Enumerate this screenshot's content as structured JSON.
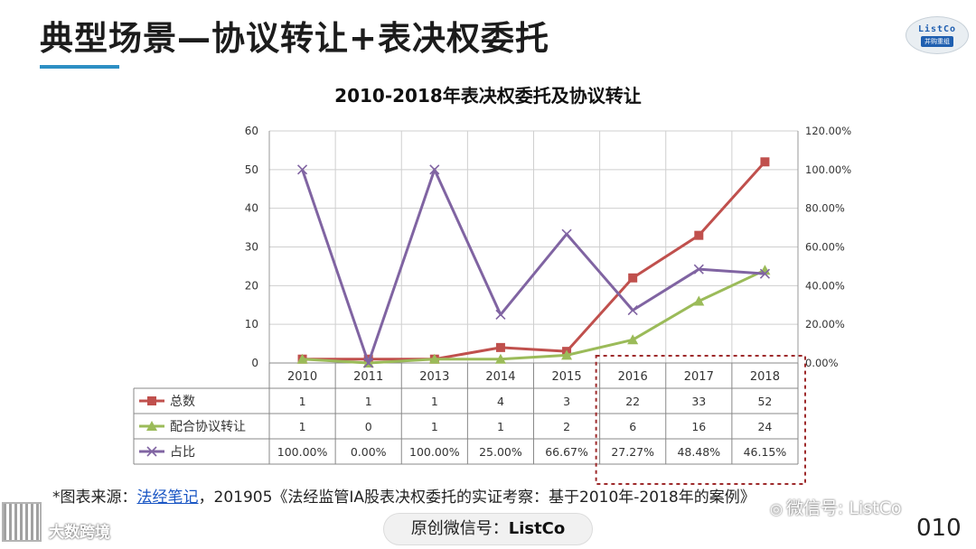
{
  "slide": {
    "title": "典型场景—协议转让+表决权委托",
    "logo_top": "ListCo",
    "logo_bottom": "并购重组"
  },
  "chart_data": {
    "type": "line",
    "title": "2010-2018年表决权委托及协议转让",
    "categories": [
      "2010",
      "2011",
      "2013",
      "2014",
      "2015",
      "2016",
      "2017",
      "2018"
    ],
    "y_left": {
      "ticks": [
        "60",
        "50",
        "40",
        "30",
        "20",
        "10",
        "0"
      ],
      "ylim": [
        0,
        60
      ]
    },
    "y_right": {
      "ticks": [
        "120.00%",
        "100.00%",
        "80.00%",
        "60.00%",
        "40.00%",
        "20.00%",
        "0.00%"
      ],
      "ylim": [
        0,
        1.2
      ]
    },
    "grid": true,
    "legend": "data-table",
    "highlight": {
      "categories": [
        "2016",
        "2017",
        "2018"
      ],
      "style": "dashed-box",
      "color": "#9e2a2b"
    },
    "series": [
      {
        "name": "总数",
        "axis": "left",
        "color": "#c0504d",
        "marker": "square",
        "values": [
          1,
          1,
          1,
          4,
          3,
          22,
          33,
          52
        ],
        "labels": [
          "1",
          "1",
          "1",
          "4",
          "3",
          "22",
          "33",
          "52"
        ]
      },
      {
        "name": "配合协议转让",
        "axis": "left",
        "color": "#9bbb59",
        "marker": "triangle",
        "values": [
          1,
          0,
          1,
          1,
          2,
          6,
          16,
          24
        ],
        "labels": [
          "1",
          "0",
          "1",
          "1",
          "2",
          "6",
          "16",
          "24"
        ]
      },
      {
        "name": "占比",
        "axis": "right",
        "color": "#8064a2",
        "marker": "x",
        "values": [
          1.0,
          0.0,
          1.0,
          0.25,
          0.6667,
          0.2727,
          0.4848,
          0.4615
        ],
        "labels": [
          "100.00%",
          "0.00%",
          "100.00%",
          "25.00%",
          "66.67%",
          "27.27%",
          "48.48%",
          "46.15%"
        ]
      }
    ]
  },
  "source": {
    "prefix": "*图表来源：",
    "link": "法经笔记",
    "text": "，201905《法经监管IA股表决权委托的实证考察：基于2010年-2018年的案例》"
  },
  "footer": {
    "watermark_left": "大数跨境",
    "watermark_right": "微信号: ListCo",
    "badge_label": "原创微信号：",
    "badge_value": "ListCo",
    "page_number": "010"
  }
}
